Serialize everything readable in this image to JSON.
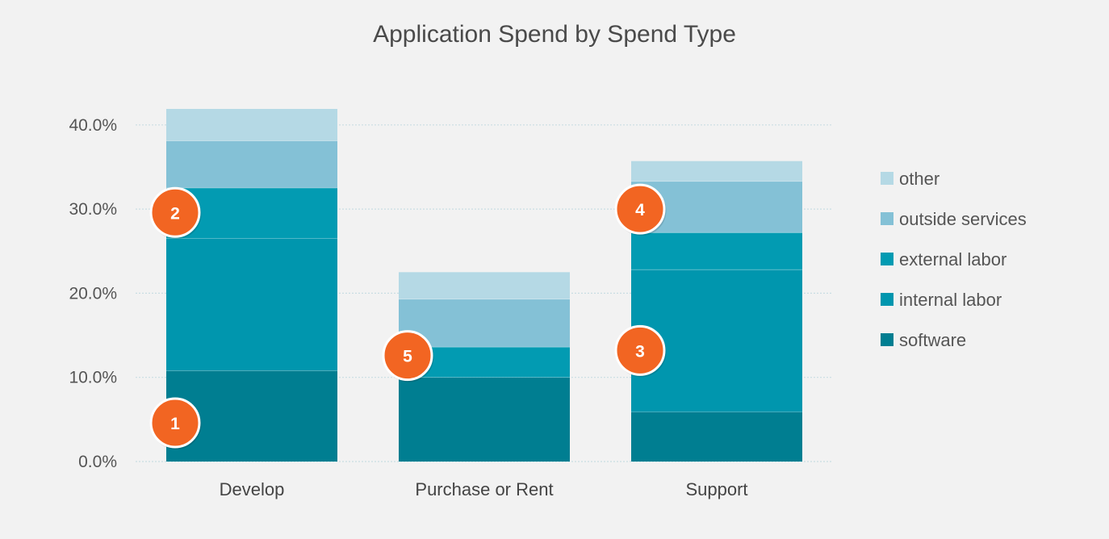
{
  "chart_data": {
    "type": "bar",
    "stacked": true,
    "title": "Application Spend by Spend Type",
    "xlabel": "",
    "ylabel": "",
    "ylim": [
      0,
      42
    ],
    "y_ticks": [
      0,
      10,
      20,
      30,
      40
    ],
    "y_tick_labels": [
      "0.0%",
      "10.0%",
      "20.0%",
      "30.0%",
      "40.0%"
    ],
    "grid": true,
    "legend_position": "right",
    "categories": [
      "Develop",
      "Purchase or Rent",
      "Support"
    ],
    "series": [
      {
        "name": "software",
        "color": "#007e91",
        "values": [
          10.8,
          10.0,
          5.9
        ]
      },
      {
        "name": "internal labor",
        "color": "#0096ae",
        "values": [
          15.7,
          0.0,
          16.9
        ]
      },
      {
        "name": "external labor",
        "color": "#029bb2",
        "values": [
          6.0,
          3.6,
          4.4
        ]
      },
      {
        "name": "outside services",
        "color": "#84c1d6",
        "values": [
          5.6,
          5.7,
          6.1
        ]
      },
      {
        "name": "other",
        "color": "#b5d9e5",
        "values": [
          3.8,
          3.2,
          2.4
        ]
      }
    ],
    "legend_order": [
      "other",
      "outside services",
      "external labor",
      "internal labor",
      "software"
    ],
    "annotations": [
      {
        "label": "1",
        "category": "Develop",
        "y": 4.6,
        "color": "#f26522"
      },
      {
        "label": "2",
        "category": "Develop",
        "y": 29.6,
        "color": "#f26522"
      },
      {
        "label": "5",
        "category": "Purchase or Rent",
        "y": 12.6,
        "color": "#f26522"
      },
      {
        "label": "4",
        "category": "Support",
        "y": 30.0,
        "color": "#f26522"
      },
      {
        "label": "3",
        "category": "Support",
        "y": 13.2,
        "color": "#f26522"
      }
    ]
  }
}
